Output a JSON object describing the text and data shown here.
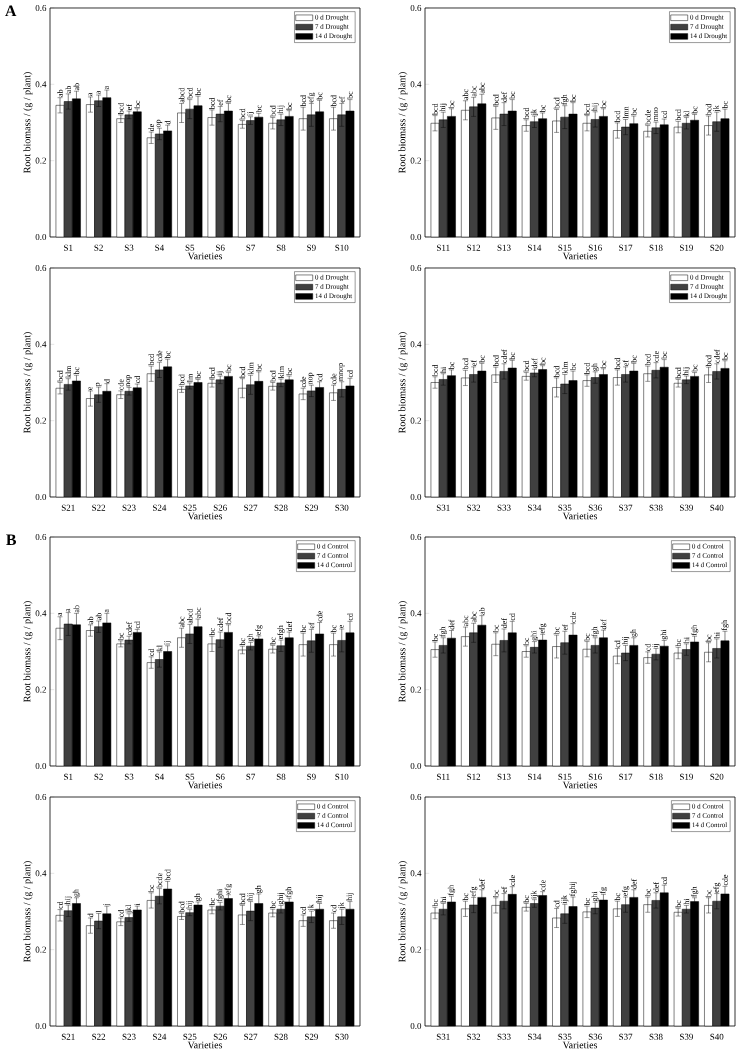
{
  "chart_data": [
    {
      "type": "bar",
      "title": "A",
      "xlabel": "Varieties",
      "ylabel": "Root biomass / (g / plant)",
      "categories": [
        "S1",
        "S2",
        "S3",
        "S4",
        "S5",
        "S6",
        "S7",
        "S8",
        "S9",
        "S10"
      ],
      "ylim": [
        0,
        0.6
      ],
      "yticks": [
        {
          "value": 0,
          "label": "0.0"
        },
        {
          "value": 0.2,
          "label": "0.2"
        },
        {
          "value": 0.4,
          "label": "0.4"
        },
        {
          "value": 0.6,
          "label": "0.6"
        }
      ],
      "legend": "top right",
      "series": [
        {
          "name": "0 d Drought",
          "color": "#ffffff",
          "values": [
            0.345,
            0.347,
            0.31,
            0.26,
            0.325,
            0.313,
            0.295,
            0.298,
            0.31,
            0.31
          ],
          "errors": [
            0.02,
            0.02,
            0.01,
            0.015,
            0.025,
            0.02,
            0.01,
            0.015,
            0.03,
            0.03
          ],
          "value_labels": [
            "ab",
            "a",
            "bcd",
            "de",
            "abcd",
            "bcd",
            "bcd",
            "bcd",
            "bcd",
            "bcd"
          ]
        },
        {
          "name": "7 d Drought",
          "color": "#404040",
          "values": [
            0.355,
            0.357,
            0.32,
            0.27,
            0.335,
            0.322,
            0.305,
            0.307,
            0.32,
            0.32
          ],
          "errors": [
            0.02,
            0.015,
            0.01,
            0.015,
            0.025,
            0.02,
            0.01,
            0.015,
            0.03,
            0.03
          ],
          "value_labels": [
            "ab",
            "a",
            "ef",
            "op",
            "bcd",
            "ef",
            "ij",
            "hij",
            "efg",
            "ef"
          ]
        },
        {
          "name": "14 d Drought",
          "color": "#000000",
          "values": [
            0.362,
            0.365,
            0.328,
            0.278,
            0.344,
            0.33,
            0.314,
            0.316,
            0.328,
            0.33
          ],
          "errors": [
            0.02,
            0.02,
            0.008,
            0.015,
            0.025,
            0.02,
            0.01,
            0.015,
            0.03,
            0.03
          ],
          "value_labels": [
            "ab",
            "a",
            "bc",
            "d",
            "bc",
            "bc",
            "bc",
            "bc",
            "bc",
            "bc"
          ]
        }
      ]
    },
    {
      "type": "bar",
      "xlabel": "Varieties",
      "ylabel": "Root biomass / (g / plant)",
      "categories": [
        "S11",
        "S12",
        "S13",
        "S14",
        "S15",
        "S16",
        "S17",
        "S18",
        "S19",
        "S20"
      ],
      "ylim": [
        0,
        0.6
      ],
      "yticks": [
        {
          "value": 0,
          "label": "0.0"
        },
        {
          "value": 0.2,
          "label": "0.2"
        },
        {
          "value": 0.4,
          "label": "0.4"
        },
        {
          "value": 0.6,
          "label": "0.6"
        }
      ],
      "legend": "top right",
      "series": [
        {
          "name": "0 d Drought",
          "color": "#ffffff",
          "values": [
            0.298,
            0.332,
            0.312,
            0.292,
            0.304,
            0.298,
            0.279,
            0.277,
            0.288,
            0.292
          ],
          "errors": [
            0.02,
            0.025,
            0.03,
            0.015,
            0.03,
            0.02,
            0.02,
            0.015,
            0.015,
            0.025
          ],
          "value_labels": [
            "bcd",
            "abc",
            "bcd",
            "bcd",
            "bcd",
            "bcd",
            "bcd",
            "bcde",
            "bcd",
            "bcd"
          ]
        },
        {
          "name": "7 d Drought",
          "color": "#404040",
          "values": [
            0.307,
            0.341,
            0.322,
            0.302,
            0.314,
            0.308,
            0.288,
            0.286,
            0.298,
            0.302
          ],
          "errors": [
            0.02,
            0.025,
            0.03,
            0.015,
            0.03,
            0.02,
            0.02,
            0.015,
            0.015,
            0.025
          ],
          "value_labels": [
            "hij",
            "abc",
            "def",
            "jk",
            "fgh",
            "hij",
            "lmn",
            "mno",
            "kl",
            "jk"
          ]
        },
        {
          "name": "14 d Drought",
          "color": "#000000",
          "values": [
            0.316,
            0.349,
            0.33,
            0.31,
            0.322,
            0.316,
            0.297,
            0.294,
            0.306,
            0.31
          ],
          "errors": [
            0.02,
            0.025,
            0.03,
            0.015,
            0.03,
            0.02,
            0.02,
            0.015,
            0.015,
            0.025
          ],
          "value_labels": [
            "bc",
            "abc",
            "bc",
            "bc",
            "bc",
            "bc",
            "bc",
            "cd",
            "bc",
            "bc"
          ]
        }
      ]
    },
    {
      "type": "bar",
      "xlabel": "Varieties",
      "ylabel": "Root biomass / (g / plant)",
      "categories": [
        "S21",
        "S22",
        "S23",
        "S24",
        "S25",
        "S26",
        "S27",
        "S28",
        "S29",
        "S30"
      ],
      "ylim": [
        0,
        0.6
      ],
      "yticks": [
        {
          "value": 0,
          "label": "0.0"
        },
        {
          "value": 0.2,
          "label": "0.2"
        },
        {
          "value": 0.4,
          "label": "0.4"
        },
        {
          "value": 0.6,
          "label": "0.6"
        }
      ],
      "legend": "top right",
      "series": [
        {
          "name": "0 d Drought",
          "color": "#ffffff",
          "values": [
            0.285,
            0.258,
            0.268,
            0.323,
            0.282,
            0.298,
            0.285,
            0.29,
            0.27,
            0.273
          ],
          "errors": [
            0.015,
            0.02,
            0.01,
            0.02,
            0.008,
            0.01,
            0.025,
            0.01,
            0.015,
            0.02
          ],
          "value_labels": [
            "bcd",
            "e",
            "cde",
            "bcd",
            "bcd",
            "bcd",
            "bcd",
            "bcd",
            "cde",
            "cde"
          ]
        },
        {
          "name": "7 d Drought",
          "color": "#404040",
          "values": [
            0.295,
            0.268,
            0.277,
            0.333,
            0.291,
            0.307,
            0.294,
            0.299,
            0.278,
            0.282
          ],
          "errors": [
            0.015,
            0.02,
            0.01,
            0.02,
            0.008,
            0.01,
            0.025,
            0.01,
            0.015,
            0.02
          ],
          "value_labels": [
            "klm",
            "p",
            "nop",
            "cde",
            "lm",
            "ij",
            "klm",
            "klm",
            "nop",
            "mnop"
          ]
        },
        {
          "name": "14 d Drought",
          "color": "#000000",
          "values": [
            0.304,
            0.277,
            0.286,
            0.341,
            0.3,
            0.316,
            0.303,
            0.307,
            0.287,
            0.291
          ],
          "errors": [
            0.015,
            0.02,
            0.01,
            0.02,
            0.008,
            0.01,
            0.025,
            0.01,
            0.015,
            0.02
          ],
          "value_labels": [
            "bc",
            "d",
            "cd",
            "bc",
            "bc",
            "bc",
            "bc",
            "bc",
            "cd",
            "cd"
          ]
        }
      ]
    },
    {
      "type": "bar",
      "xlabel": "Varieties",
      "ylabel": "Root biomass / (g / plant)",
      "categories": [
        "S31",
        "S32",
        "S33",
        "S34",
        "S35",
        "S36",
        "S37",
        "S38",
        "S39",
        "S40"
      ],
      "ylim": [
        0,
        0.6
      ],
      "yticks": [
        {
          "value": 0,
          "label": "0.0"
        },
        {
          "value": 0.2,
          "label": "0.2"
        },
        {
          "value": 0.4,
          "label": "0.4"
        },
        {
          "value": 0.6,
          "label": "0.6"
        }
      ],
      "legend": "top right",
      "series": [
        {
          "name": "0 d Drought",
          "color": "#ffffff",
          "values": [
            0.3,
            0.312,
            0.32,
            0.316,
            0.287,
            0.305,
            0.313,
            0.323,
            0.298,
            0.32
          ],
          "errors": [
            0.015,
            0.02,
            0.02,
            0.01,
            0.025,
            0.015,
            0.02,
            0.02,
            0.01,
            0.02
          ],
          "value_labels": [
            "bcd",
            "bcd",
            "bcd",
            "bcd",
            "bcd",
            "bcd",
            "bcd",
            "bcd",
            "bcd",
            "bcd"
          ]
        },
        {
          "name": "7 d Drought",
          "color": "#404040",
          "values": [
            0.308,
            0.321,
            0.329,
            0.325,
            0.296,
            0.313,
            0.321,
            0.332,
            0.307,
            0.329
          ],
          "errors": [
            0.015,
            0.02,
            0.02,
            0.01,
            0.025,
            0.015,
            0.02,
            0.02,
            0.01,
            0.02
          ],
          "value_labels": [
            "hi",
            "ef",
            "cdef",
            "def",
            "klm",
            "gh",
            "ef",
            "cde",
            "hij",
            "cdef"
          ]
        },
        {
          "name": "14 d Drought",
          "color": "#000000",
          "values": [
            0.318,
            0.33,
            0.338,
            0.334,
            0.305,
            0.321,
            0.33,
            0.34,
            0.316,
            0.337
          ],
          "errors": [
            0.015,
            0.02,
            0.02,
            0.01,
            0.025,
            0.015,
            0.02,
            0.02,
            0.01,
            0.02
          ],
          "value_labels": [
            "bc",
            "bc",
            "bc",
            "bc",
            "bc",
            "bc",
            "bc",
            "bc",
            "bc",
            "bc"
          ]
        }
      ]
    },
    {
      "type": "bar",
      "title": "B",
      "xlabel": "Varieties",
      "ylabel": "Root biomass / (g / plant)",
      "categories": [
        "S1",
        "S2",
        "S3",
        "S4",
        "S5",
        "S6",
        "S7",
        "S8",
        "S9",
        "S10"
      ],
      "ylim": [
        0,
        0.6
      ],
      "yticks": [
        {
          "value": 0,
          "label": "0.0"
        },
        {
          "value": 0.2,
          "label": "0.2"
        },
        {
          "value": 0.4,
          "label": "0.4"
        },
        {
          "value": 0.6,
          "label": "0.6"
        }
      ],
      "legend": "top right",
      "series": [
        {
          "name": "0 d Control",
          "color": "#ffffff",
          "values": [
            0.361,
            0.355,
            0.32,
            0.271,
            0.336,
            0.32,
            0.304,
            0.306,
            0.318,
            0.318
          ],
          "errors": [
            0.03,
            0.015,
            0.008,
            0.015,
            0.025,
            0.02,
            0.01,
            0.01,
            0.03,
            0.03
          ],
          "value_labels": [
            "a",
            "ab",
            "bc",
            "cd",
            "abc",
            "bc",
            "bc",
            "bc",
            "bc",
            "bc"
          ]
        },
        {
          "name": "7 d Control",
          "color": "#404040",
          "values": [
            0.372,
            0.365,
            0.33,
            0.279,
            0.346,
            0.331,
            0.314,
            0.315,
            0.328,
            0.329
          ],
          "errors": [
            0.03,
            0.015,
            0.01,
            0.02,
            0.025,
            0.02,
            0.01,
            0.015,
            0.03,
            0.03
          ],
          "value_labels": [
            "a",
            "ab",
            "cdef",
            "kl",
            "abcd",
            "cdef",
            "gh",
            "efgh",
            "ef",
            "e"
          ]
        },
        {
          "name": "14 d Control",
          "color": "#000000",
          "values": [
            0.37,
            0.375,
            0.35,
            0.3,
            0.365,
            0.35,
            0.333,
            0.336,
            0.346,
            0.349
          ],
          "errors": [
            0.03,
            0.025,
            0.008,
            0.015,
            0.02,
            0.02,
            0.008,
            0.015,
            0.03,
            0.03
          ],
          "value_labels": [
            "ab",
            "a",
            "cd",
            "ij",
            "abc",
            "bcd",
            "efg",
            "def",
            "cde",
            "cd"
          ]
        }
      ]
    },
    {
      "type": "bar",
      "xlabel": "Varieties",
      "ylabel": "Root biomass / (g / plant)",
      "categories": [
        "S11",
        "S12",
        "S13",
        "S14",
        "S15",
        "S16",
        "S17",
        "S18",
        "S19",
        "S20"
      ],
      "ylim": [
        0,
        0.6
      ],
      "yticks": [
        {
          "value": 0,
          "label": "0.0"
        },
        {
          "value": 0.2,
          "label": "0.2"
        },
        {
          "value": 0.4,
          "label": "0.4"
        },
        {
          "value": 0.6,
          "label": "0.6"
        }
      ],
      "legend": "top right",
      "series": [
        {
          "name": "0 d Control",
          "color": "#ffffff",
          "values": [
            0.305,
            0.339,
            0.319,
            0.3,
            0.313,
            0.306,
            0.288,
            0.284,
            0.296,
            0.298
          ],
          "errors": [
            0.02,
            0.025,
            0.03,
            0.015,
            0.03,
            0.02,
            0.02,
            0.015,
            0.015,
            0.025
          ],
          "value_labels": [
            "bc",
            "abc",
            "bc",
            "bc",
            "bc",
            "bc",
            "cd",
            "cd",
            "bc",
            "bc"
          ]
        },
        {
          "name": "7 d Control",
          "color": "#404040",
          "values": [
            0.316,
            0.349,
            0.329,
            0.311,
            0.323,
            0.316,
            0.296,
            0.293,
            0.305,
            0.308
          ],
          "errors": [
            0.02,
            0.025,
            0.03,
            0.015,
            0.03,
            0.02,
            0.02,
            0.015,
            0.015,
            0.025
          ],
          "value_labels": [
            "fgh",
            "abc",
            "def",
            "ghi",
            "ef",
            "fgh",
            "hij",
            "ij",
            "hi",
            "hi"
          ]
        },
        {
          "name": "14 d Control",
          "color": "#000000",
          "values": [
            0.335,
            0.369,
            0.349,
            0.33,
            0.343,
            0.336,
            0.316,
            0.314,
            0.325,
            0.328
          ],
          "errors": [
            0.02,
            0.025,
            0.03,
            0.015,
            0.03,
            0.02,
            0.02,
            0.015,
            0.015,
            0.025
          ],
          "value_labels": [
            "def",
            "ab",
            "cd",
            "efg",
            "cde",
            "def",
            "gh",
            "ghi",
            "fgh",
            "fgh"
          ]
        }
      ]
    },
    {
      "type": "bar",
      "xlabel": "Varieties",
      "ylabel": "Root biomass / (g / plant)",
      "categories": [
        "S21",
        "S22",
        "S23",
        "S24",
        "S25",
        "S26",
        "S27",
        "S28",
        "S29",
        "S30"
      ],
      "ylim": [
        0,
        0.6
      ],
      "yticks": [
        {
          "value": 0,
          "label": "0.0"
        },
        {
          "value": 0.2,
          "label": "0.2"
        },
        {
          "value": 0.4,
          "label": "0.4"
        },
        {
          "value": 0.6,
          "label": "0.6"
        }
      ],
      "legend": "top right",
      "series": [
        {
          "name": "0 d Control",
          "color": "#ffffff",
          "values": [
            0.29,
            0.263,
            0.273,
            0.329,
            0.287,
            0.304,
            0.291,
            0.296,
            0.276,
            0.276
          ],
          "errors": [
            0.015,
            0.02,
            0.01,
            0.02,
            0.008,
            0.01,
            0.025,
            0.01,
            0.015,
            0.02
          ],
          "value_labels": [
            "cd",
            "d",
            "cd",
            "bc",
            "bcd",
            "bc",
            "bcd",
            "bc",
            "cd",
            "cd"
          ]
        },
        {
          "name": "7 d Control",
          "color": "#404040",
          "values": [
            0.302,
            0.275,
            0.284,
            0.34,
            0.297,
            0.314,
            0.301,
            0.306,
            0.286,
            0.286
          ],
          "errors": [
            0.015,
            0.02,
            0.01,
            0.02,
            0.008,
            0.01,
            0.025,
            0.01,
            0.015,
            0.02
          ],
          "value_labels": [
            "hij",
            "l",
            "jkl",
            "bcde",
            "hij",
            "fghi",
            "hij",
            "ghij",
            "jk",
            "jk"
          ]
        },
        {
          "name": "14 d Control",
          "color": "#000000",
          "values": [
            0.321,
            0.294,
            0.304,
            0.359,
            0.317,
            0.334,
            0.321,
            0.325,
            0.306,
            0.306
          ],
          "errors": [
            0.015,
            0.02,
            0.01,
            0.02,
            0.008,
            0.01,
            0.025,
            0.01,
            0.015,
            0.02
          ],
          "value_labels": [
            "gh",
            "j",
            "i",
            "bcd",
            "gh",
            "efg",
            "gh",
            "fgh",
            "hij",
            "hij"
          ]
        }
      ]
    },
    {
      "type": "bar",
      "xlabel": "Varieties",
      "ylabel": "Root biomass / (g / plant)",
      "categories": [
        "S31",
        "S32",
        "S33",
        "S34",
        "S35",
        "S36",
        "S37",
        "S38",
        "S39",
        "S40"
      ],
      "ylim": [
        0,
        0.6
      ],
      "yticks": [
        {
          "value": 0,
          "label": "0.0"
        },
        {
          "value": 0.2,
          "label": "0.2"
        },
        {
          "value": 0.4,
          "label": "0.4"
        },
        {
          "value": 0.6,
          "label": "0.6"
        }
      ],
      "legend": "top right",
      "series": [
        {
          "name": "0 d Control",
          "color": "#ffffff",
          "values": [
            0.296,
            0.307,
            0.316,
            0.311,
            0.283,
            0.299,
            0.307,
            0.318,
            0.298,
            0.316
          ],
          "errors": [
            0.015,
            0.02,
            0.02,
            0.01,
            0.025,
            0.015,
            0.02,
            0.02,
            0.01,
            0.02
          ],
          "value_labels": [
            "bc",
            "bc",
            "bc",
            "bc",
            "cd",
            "bc",
            "bc",
            "bc",
            "bc",
            "bc"
          ]
        },
        {
          "name": "7 d Control",
          "color": "#404040",
          "values": [
            0.306,
            0.317,
            0.327,
            0.321,
            0.294,
            0.309,
            0.318,
            0.329,
            0.306,
            0.327
          ],
          "errors": [
            0.015,
            0.02,
            0.02,
            0.01,
            0.025,
            0.015,
            0.02,
            0.02,
            0.01,
            0.02
          ],
          "value_labels": [
            "hi",
            "efg",
            "ef",
            "ijk",
            "ijk",
            "ghi",
            "efg",
            "def",
            "hi",
            "efg"
          ]
        },
        {
          "name": "14 d Control",
          "color": "#000000",
          "values": [
            0.325,
            0.337,
            0.345,
            0.342,
            0.313,
            0.33,
            0.337,
            0.349,
            0.326,
            0.346
          ],
          "errors": [
            0.015,
            0.02,
            0.02,
            0.01,
            0.025,
            0.015,
            0.02,
            0.02,
            0.01,
            0.02
          ],
          "value_labels": [
            "fgh",
            "def",
            "cde",
            "cde",
            "fghij",
            "fg",
            "def",
            "cd",
            "fgh",
            "cde"
          ]
        }
      ]
    }
  ]
}
